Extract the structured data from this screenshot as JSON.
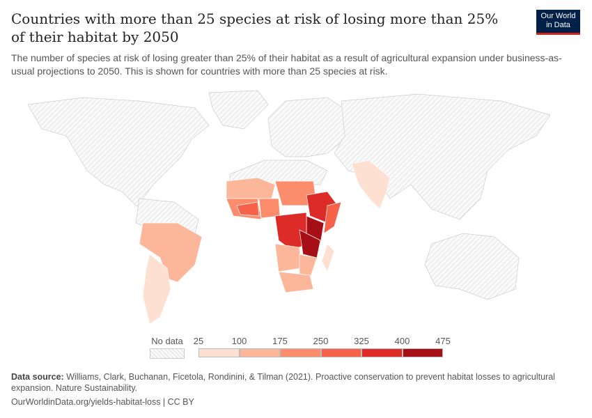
{
  "header": {
    "title": "Countries with more than 25 species at risk of losing more than 25% of their habitat by 2050",
    "subtitle": "The number of species at risk of losing greater than 25% of their habitat as a result of agricultural expansion under business-as-usual projections to 2050. This is shown for countries with more than 25 species at risk.",
    "logo": "Our World in Data"
  },
  "legend": {
    "no_data_label": "No data",
    "ticks": [
      "25",
      "100",
      "175",
      "250",
      "325",
      "400",
      "475"
    ],
    "colors": [
      "#fee0d2",
      "#fcb79a",
      "#fb8d6c",
      "#f6634a",
      "#dd2c27",
      "#a50f15"
    ],
    "no_data_color": "#e8e8e8"
  },
  "footer": {
    "source_label": "Data source:",
    "source_text": " Williams, Clark, Buchanan, Ficetola, Rondinini, & Tilman (2021). Proactive conservation to prevent habitat losses to agricultural expansion. Nature Sustainability.",
    "url": "OurWorldinData.org/yields-habitat-loss | CC BY"
  }
}
